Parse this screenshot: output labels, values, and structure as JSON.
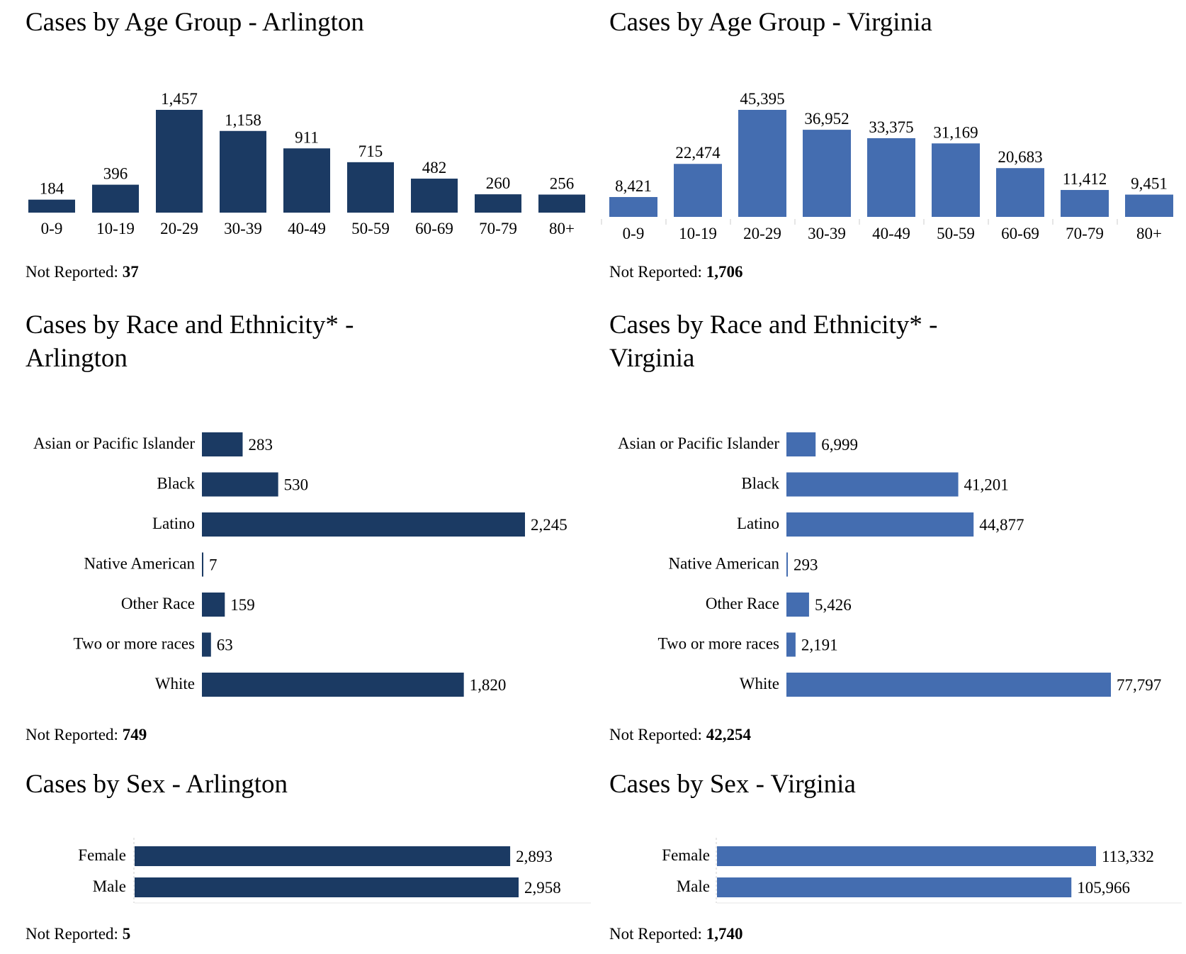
{
  "colors": {
    "arlington": "#1b3a63",
    "virginia": "#446db0",
    "axis": "#e6e6e6"
  },
  "sections": {
    "age_arlington": {
      "title": "Cases by Age Group - Arlington",
      "not_reported_label": "Not Reported:",
      "not_reported_value": "37"
    },
    "age_virginia": {
      "title": "Cases by Age Group - Virginia",
      "not_reported_label": "Not Reported:",
      "not_reported_value": "1,706"
    },
    "race_arlington": {
      "title_line1": "Cases by Race and Ethnicity* -",
      "title_line2": "Arlington",
      "not_reported_label": "Not Reported:",
      "not_reported_value": "749"
    },
    "race_virginia": {
      "title_line1": "Cases by Race and Ethnicity* -",
      "title_line2": "Virginia",
      "not_reported_label": "Not Reported:",
      "not_reported_value": "42,254"
    },
    "sex_arlington": {
      "title": "Cases by Sex - Arlington",
      "not_reported_label": "Not Reported:",
      "not_reported_value": "5"
    },
    "sex_virginia": {
      "title": "Cases by Sex - Virginia",
      "not_reported_label": "Not Reported:",
      "not_reported_value": "1,740"
    }
  },
  "chart_data": [
    {
      "id": "age_arlington",
      "type": "bar",
      "orientation": "vertical",
      "title": "Cases by Age Group - Arlington",
      "xlabel": "",
      "ylabel": "",
      "categories": [
        "0-9",
        "10-19",
        "20-29",
        "30-39",
        "40-49",
        "50-59",
        "60-69",
        "70-79",
        "80+"
      ],
      "values": [
        184,
        396,
        1457,
        1158,
        911,
        715,
        482,
        260,
        256
      ],
      "labels": [
        "184",
        "396",
        "1,457",
        "1,158",
        "911",
        "715",
        "482",
        "260",
        "256"
      ],
      "color": "#1b3a63",
      "ylim": [
        0,
        1457
      ],
      "grid": false,
      "legend": "none"
    },
    {
      "id": "age_virginia",
      "type": "bar",
      "orientation": "vertical",
      "title": "Cases by Age Group - Virginia",
      "xlabel": "",
      "ylabel": "",
      "categories": [
        "0-9",
        "10-19",
        "20-29",
        "30-39",
        "40-49",
        "50-59",
        "60-69",
        "70-79",
        "80+"
      ],
      "values": [
        8421,
        22474,
        45395,
        36952,
        33375,
        31169,
        20683,
        11412,
        9451
      ],
      "labels": [
        "8,421",
        "22,474",
        "45,395",
        "36,952",
        "33,375",
        "31,169",
        "20,683",
        "11,412",
        "9,451"
      ],
      "color": "#446db0",
      "ylim": [
        0,
        45395
      ],
      "grid": false,
      "legend": "none"
    },
    {
      "id": "race_arlington",
      "type": "bar",
      "orientation": "horizontal",
      "title": "Cases by Race and Ethnicity* - Arlington",
      "categories": [
        "Asian or Pacific Islander",
        "Black",
        "Latino",
        "Native American",
        "Other Race",
        "Two or more races",
        "White"
      ],
      "values": [
        283,
        530,
        2245,
        7,
        159,
        63,
        1820
      ],
      "labels": [
        "283",
        "530",
        "2,245",
        "7",
        "159",
        "63",
        "1,820"
      ],
      "color": "#1b3a63",
      "xlim": [
        0,
        2245
      ],
      "grid": false,
      "legend": "none"
    },
    {
      "id": "race_virginia",
      "type": "bar",
      "orientation": "horizontal",
      "title": "Cases by Race and Ethnicity* - Virginia",
      "categories": [
        "Asian or Pacific Islander",
        "Black",
        "Latino",
        "Native American",
        "Other Race",
        "Two or more races",
        "White"
      ],
      "values": [
        6999,
        41201,
        44877,
        293,
        5426,
        2191,
        77797
      ],
      "labels": [
        "6,999",
        "41,201",
        "44,877",
        "293",
        "5,426",
        "2,191",
        "77,797"
      ],
      "color": "#446db0",
      "xlim": [
        0,
        77797
      ],
      "grid": false,
      "legend": "none"
    },
    {
      "id": "sex_arlington",
      "type": "bar",
      "orientation": "horizontal",
      "title": "Cases by Sex - Arlington",
      "categories": [
        "Female",
        "Male"
      ],
      "values": [
        2893,
        2958
      ],
      "labels": [
        "2,893",
        "2,958"
      ],
      "color": "#1b3a63",
      "xlim": [
        0,
        3280
      ],
      "grid": false,
      "legend": "none"
    },
    {
      "id": "sex_virginia",
      "type": "bar",
      "orientation": "horizontal",
      "title": "Cases by Sex - Virginia",
      "categories": [
        "Female",
        "Male"
      ],
      "values": [
        113332,
        105966
      ],
      "labels": [
        "113,332",
        "105,966"
      ],
      "color": "#446db0",
      "xlim": [
        0,
        148000
      ],
      "grid": false,
      "legend": "none"
    }
  ]
}
